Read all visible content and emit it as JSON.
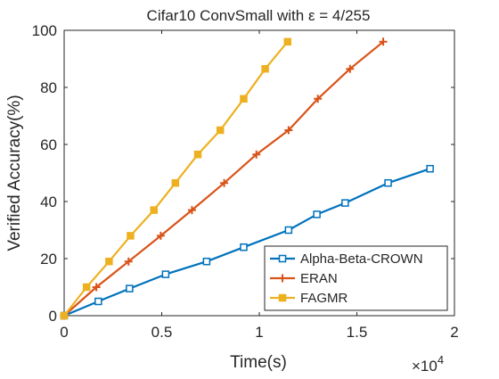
{
  "chart_data": {
    "type": "line",
    "title": "Cifar10 ConvSmall with ε = 4/255",
    "xlabel": "Time(s)",
    "ylabel": "Verified Accuracy(%)",
    "x_exponent_label": "×10",
    "x_exponent_power": "4",
    "x_tick_labels": [
      "0",
      "0.5",
      "1",
      "1.5",
      "2"
    ],
    "x_tick_values": [
      0,
      5000,
      10000,
      15000,
      20000
    ],
    "y_tick_labels": [
      "0",
      "20",
      "40",
      "60",
      "80",
      "100"
    ],
    "y_tick_values": [
      0,
      20,
      40,
      60,
      80,
      100
    ],
    "xlim": [
      0,
      20000
    ],
    "ylim": [
      0,
      100
    ],
    "grid": false,
    "legend_position": "bottom-right",
    "series": [
      {
        "name": "Alpha-Beta-CROWN",
        "color": "#0072BD",
        "marker": "square",
        "x": [
          0,
          1750,
          3350,
          5200,
          7300,
          9200,
          11500,
          12950,
          14400,
          16600,
          18750
        ],
        "y": [
          0,
          5,
          9.5,
          14.5,
          19,
          24,
          30,
          35.5,
          39.5,
          46.5,
          51.5
        ]
      },
      {
        "name": "ERAN",
        "color": "#D95319",
        "marker": "plus",
        "x": [
          0,
          1650,
          3300,
          4950,
          6550,
          8200,
          9850,
          11500,
          13000,
          14650,
          16350
        ],
        "y": [
          0,
          10,
          19,
          28,
          37,
          46.5,
          56.5,
          65,
          76,
          86.5,
          96
        ]
      },
      {
        "name": "FAGMR",
        "color": "#EDB120",
        "marker": "square-filled",
        "x": [
          0,
          1150,
          2300,
          3400,
          4600,
          5700,
          6850,
          8000,
          9200,
          10300,
          11450
        ],
        "y": [
          0,
          10,
          19,
          28,
          37,
          46.5,
          56.5,
          65,
          76,
          86.5,
          96
        ]
      }
    ]
  }
}
